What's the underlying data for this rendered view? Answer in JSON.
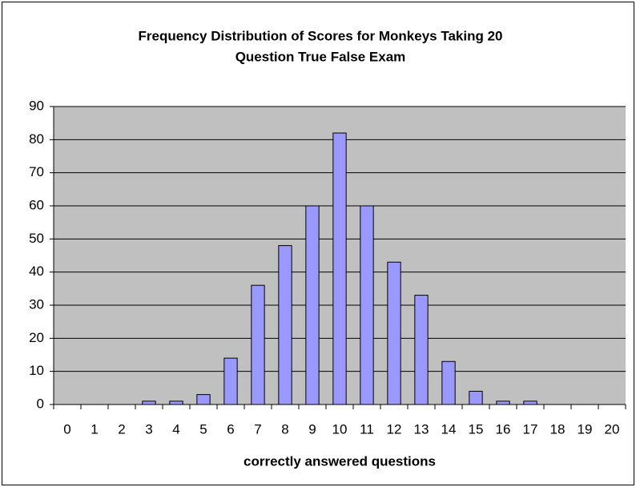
{
  "chart_data": {
    "type": "bar",
    "title": [
      "Frequency Distribution of Scores for Monkeys Taking 20",
      "Question True False Exam"
    ],
    "x_label": "correctly answered questions",
    "categories": [
      "0",
      "1",
      "2",
      "3",
      "4",
      "5",
      "6",
      "7",
      "8",
      "9",
      "10",
      "11",
      "12",
      "13",
      "14",
      "15",
      "16",
      "17",
      "18",
      "19",
      "20"
    ],
    "values": [
      0,
      0,
      0,
      1,
      1,
      3,
      14,
      36,
      48,
      60,
      82,
      60,
      43,
      33,
      13,
      4,
      1,
      1,
      0,
      0,
      0
    ],
    "color": "#9999ff",
    "ylim": [
      0,
      90
    ],
    "yticks": [
      0,
      10,
      20,
      30,
      40,
      50,
      60,
      70,
      80,
      90
    ],
    "grid": true
  }
}
